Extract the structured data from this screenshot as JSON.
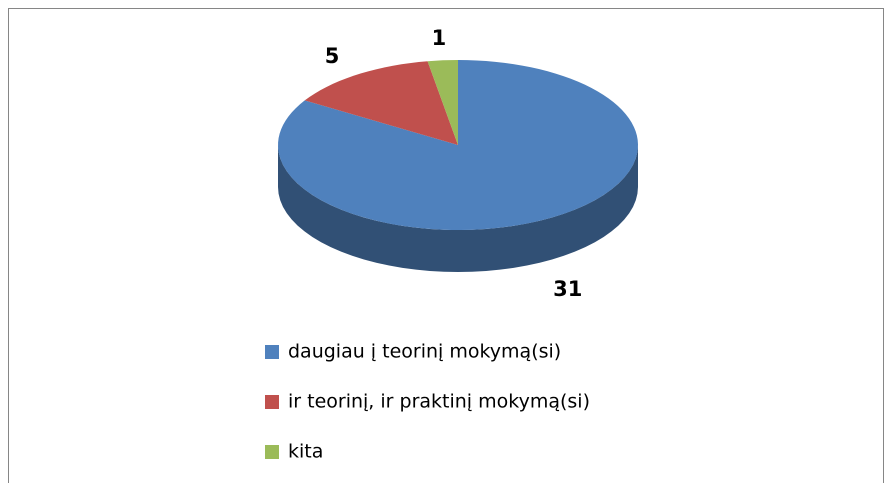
{
  "chart_data": {
    "type": "pie3d",
    "categories": [
      "daugiau į teorinį mokymą(si)",
      "ir teorinį, ir praktinį mokymą(si)",
      "kita"
    ],
    "values": [
      31,
      5,
      1
    ],
    "colors": [
      "#4f81bd",
      "#c0504d",
      "#9bbb59"
    ],
    "legend": "bottom"
  }
}
